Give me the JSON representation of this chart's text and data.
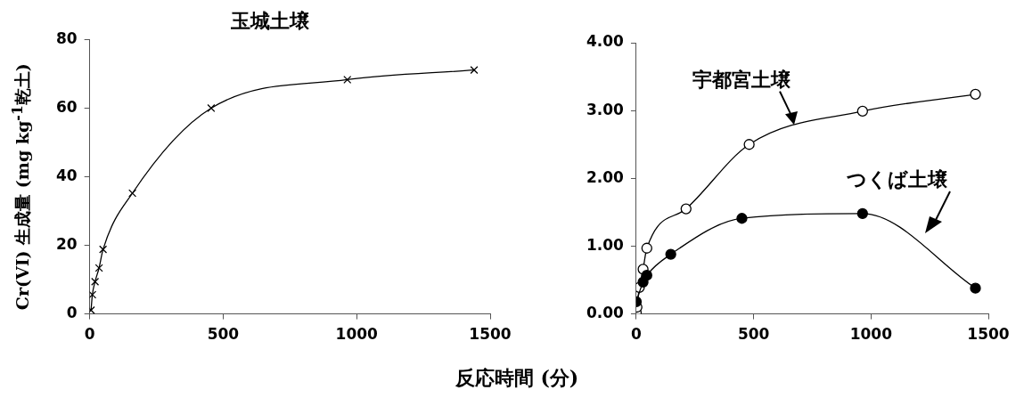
{
  "chart_data": [
    {
      "type": "line",
      "title": "玉城土壌",
      "xlabel": "反応時間 (分)",
      "ylabel": "Cr(VI) 生成量 (mg kg$^{-1}$乾土)",
      "marker": "cross",
      "legend": false,
      "grid": false,
      "xlim": [
        0,
        1500
      ],
      "xticks": [
        0,
        500,
        1000,
        1500
      ],
      "ylim": [
        0,
        80
      ],
      "yticks": [
        0,
        20,
        40,
        60,
        80
      ],
      "series": [
        {
          "color": "#000000",
          "x": [
            5,
            10,
            20,
            35,
            50,
            160,
            455,
            965,
            1440
          ],
          "values": [
            1.1,
            5.6,
            9.4,
            13.4,
            18.8,
            35.2,
            60,
            68.3,
            71.1
          ]
        }
      ]
    },
    {
      "type": "line",
      "marker": "circle",
      "legend": false,
      "grid": false,
      "xlim": [
        0,
        1500
      ],
      "xticks": [
        0,
        500,
        1000,
        1500
      ],
      "ylim": [
        0,
        4
      ],
      "yticks": [
        {
          "value": 0,
          "label": "0.00"
        },
        {
          "value": 1,
          "label": "1.00"
        },
        {
          "value": 2,
          "label": "2.00"
        },
        {
          "value": 3,
          "label": "3.00"
        },
        {
          "value": 4,
          "label": "4.00"
        }
      ],
      "series": [
        {
          "name": "宇都宮土壌",
          "color": "#000000",
          "x": [
            0,
            3,
            13,
            29,
            45,
            212,
            481,
            964,
            1445
          ],
          "values": [
            0.02,
            0.1,
            0.39,
            0.66,
            0.97,
            1.55,
            2.5,
            2.99,
            3.24
          ]
        },
        {
          "name": "つくば土壌",
          "color": "#000000",
          "x": [
            0,
            29,
            45,
            147,
            450,
            964,
            1445
          ],
          "values": [
            0.18,
            0.47,
            0.57,
            0.88,
            1.41,
            1.48,
            0.38
          ]
        }
      ]
    }
  ]
}
